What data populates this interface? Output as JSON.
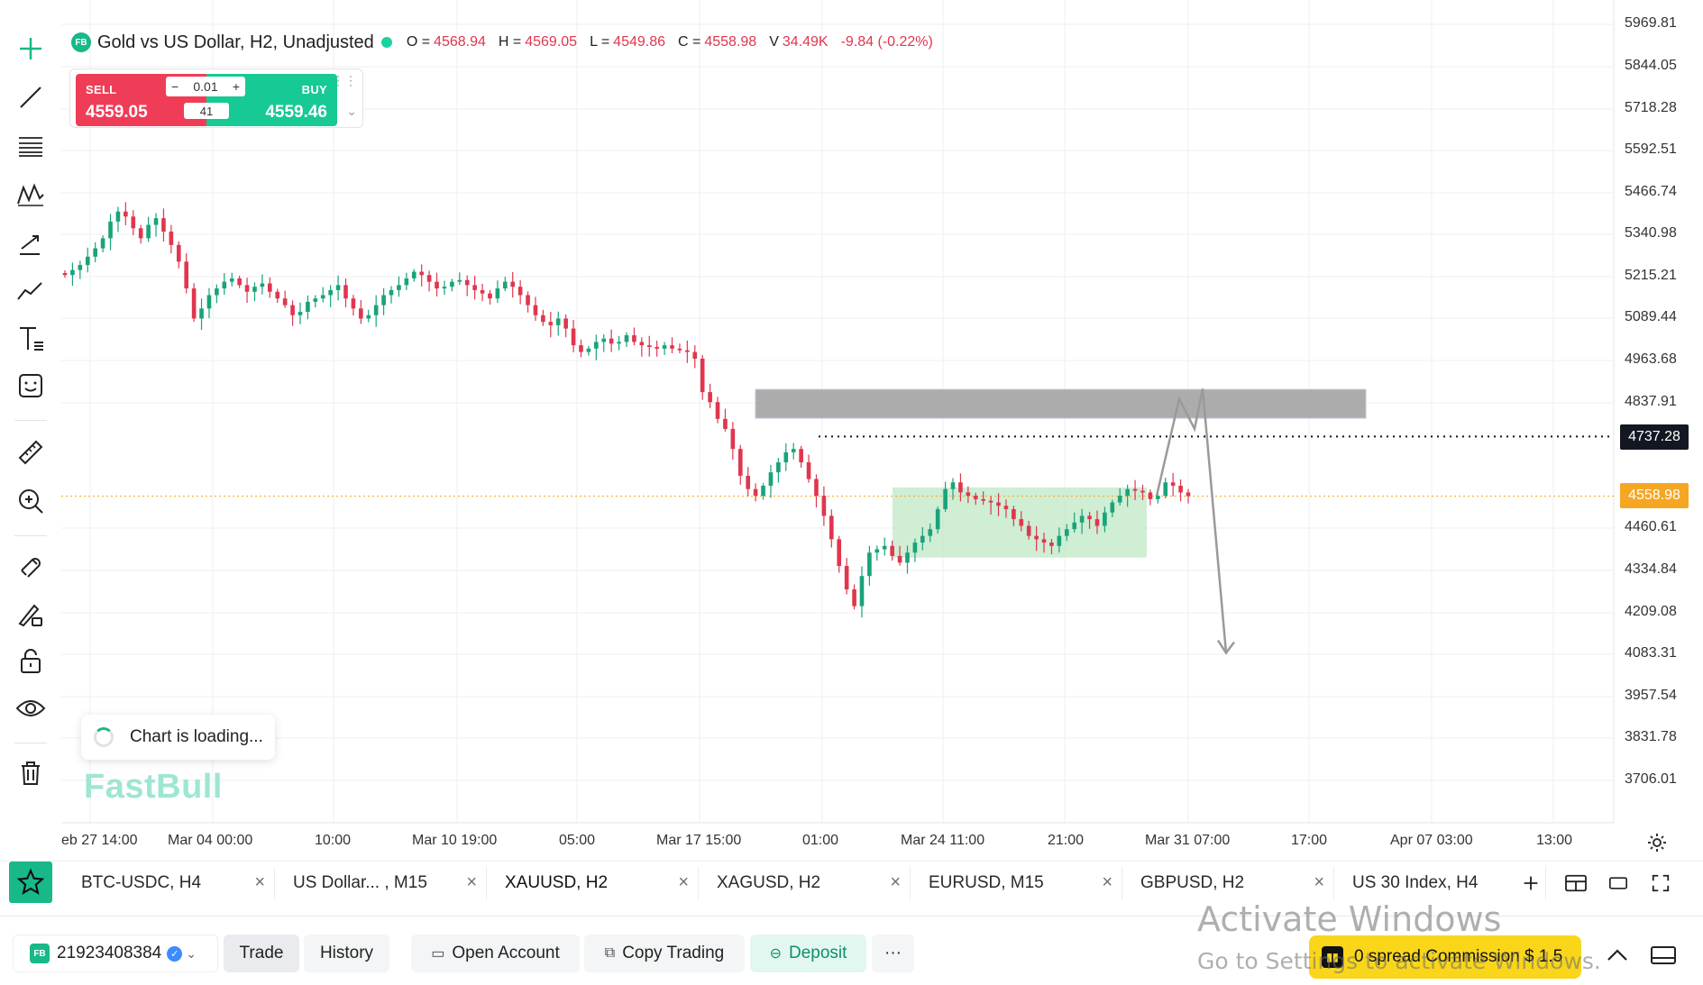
{
  "legend": {
    "badge": "FB",
    "title": "Gold vs US Dollar, H2, Unadjusted",
    "open_label": "O =",
    "open": "4568.94",
    "high_label": "H =",
    "high": "4569.05",
    "low_label": "L =",
    "low": "4549.86",
    "close_label": "C =",
    "close": "4558.98",
    "volume_label": "V",
    "volume": "34.49K",
    "change": "-9.84 (-0.22%)"
  },
  "trade_widget": {
    "sell_label": "SELL",
    "sell_price": "4559.05",
    "buy_label": "BUY",
    "buy_price": "4559.46",
    "lot_minus": "−",
    "lot": "0.01",
    "lot_plus": "+",
    "spread": "41"
  },
  "price_axis": {
    "labels": [
      "5969.81",
      "5844.05",
      "5718.28",
      "5592.51",
      "5466.74",
      "5340.98",
      "5215.21",
      "5089.44",
      "4963.68",
      "4837.91",
      "4460.61",
      "4334.84",
      "4209.08",
      "4083.31",
      "3957.54",
      "3831.78",
      "3706.01"
    ],
    "marker_line": "4737.28",
    "current": "4558.98"
  },
  "time_axis": {
    "labels": [
      "eb 27 14:00",
      "Mar 04 00:00",
      "10:00",
      "Mar 10 19:00",
      "05:00",
      "Mar 17 15:00",
      "01:00",
      "Mar 24 11:00",
      "21:00",
      "Mar 31 07:00",
      "17:00",
      "Apr 07 03:00",
      "13:00"
    ]
  },
  "loading": {
    "text": "Chart is loading..."
  },
  "watermark": {
    "text": "FastBull"
  },
  "tabs": [
    {
      "label": "BTC-USDC, H4"
    },
    {
      "label": "US Dollar... , M15"
    },
    {
      "label": "XAUUSD, H2"
    },
    {
      "label": "XAGUSD, H2"
    },
    {
      "label": "EURUSD, M15"
    },
    {
      "label": "GBPUSD, H2"
    },
    {
      "label": "US 30 Index, H4"
    }
  ],
  "bottom": {
    "account_badge": "FB",
    "account_id": "21923408384",
    "trade": "Trade",
    "history": "History",
    "open_account": "Open Account",
    "copy_trading": "Copy Trading",
    "deposit": "Deposit",
    "more": "···",
    "promo": "0 spread Commission $ 1.5"
  },
  "os_watermark": {
    "title": "Activate Windows",
    "subtitle": "Go to Settings to activate Windows."
  },
  "colors": {
    "up": "#19a37a",
    "down": "#e0364f",
    "accent": "#18b88a",
    "resistance_zone": "#9e9e9e",
    "range_zone": "#bfe8c6"
  },
  "chart_data": {
    "type": "candlestick",
    "symbol": "XAUUSD",
    "timeframe": "H2",
    "ylim": [
      3650,
      6000
    ],
    "closes": [
      5220,
      5235,
      5250,
      5275,
      5300,
      5330,
      5380,
      5410,
      5395,
      5360,
      5330,
      5370,
      5390,
      5350,
      5310,
      5260,
      5180,
      5090,
      5120,
      5160,
      5180,
      5200,
      5210,
      5190,
      5170,
      5185,
      5195,
      5170,
      5150,
      5130,
      5100,
      5110,
      5140,
      5150,
      5160,
      5175,
      5190,
      5150,
      5120,
      5090,
      5100,
      5130,
      5160,
      5175,
      5190,
      5210,
      5230,
      5220,
      5200,
      5180,
      5185,
      5200,
      5205,
      5190,
      5175,
      5165,
      5150,
      5180,
      5200,
      5185,
      5160,
      5130,
      5100,
      5080,
      5070,
      5090,
      5060,
      5010,
      4990,
      5000,
      5020,
      5030,
      5015,
      5020,
      5040,
      5020,
      5010,
      5005,
      5000,
      5010,
      5000,
      4995,
      4990,
      4970,
      4870,
      4840,
      4790,
      4760,
      4700,
      4620,
      4580,
      4560,
      4590,
      4630,
      4660,
      4690,
      4700,
      4660,
      4610,
      4560,
      4500,
      4430,
      4350,
      4280,
      4230,
      4320,
      4390,
      4400,
      4410,
      4380,
      4360,
      4390,
      4420,
      4440,
      4460,
      4520,
      4580,
      4600,
      4570,
      4560,
      4550,
      4545,
      4540,
      4530,
      4520,
      4490,
      4470,
      4440,
      4430,
      4420,
      4410,
      4440,
      4460,
      4480,
      4500,
      4490,
      4470,
      4510,
      4540,
      4560,
      4580,
      4575,
      4570,
      4550,
      4560,
      4600,
      4590,
      4570,
      4558.98
    ],
    "zones": [
      {
        "type": "resistance",
        "from": 4792,
        "to": 4878
      },
      {
        "type": "range",
        "from": 4375,
        "to": 4585
      }
    ],
    "horizontal_line": 4737.28,
    "projection_path": [
      4560,
      4850,
      4760,
      4880,
      4090
    ]
  }
}
